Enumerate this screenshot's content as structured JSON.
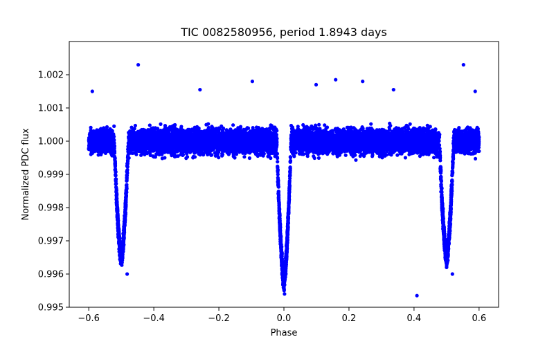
{
  "chart_data": {
    "type": "scatter",
    "title": "TIC 0082580956, period 1.8943 days",
    "xlabel": "Phase",
    "ylabel": "Normalized PDC flux",
    "xlim": [
      -0.66,
      0.66
    ],
    "ylim": [
      0.995,
      1.003
    ],
    "xticks": [
      -0.6,
      -0.4,
      -0.2,
      0.0,
      0.2,
      0.4,
      0.6
    ],
    "xtick_labels": [
      "−0.6",
      "−0.4",
      "−0.2",
      "0.0",
      "0.2",
      "0.4",
      "0.6"
    ],
    "yticks": [
      0.995,
      0.996,
      0.997,
      0.998,
      0.999,
      1.0,
      1.001,
      1.002
    ],
    "ytick_labels": [
      "0.995",
      "0.996",
      "0.997",
      "0.998",
      "0.999",
      "1.000",
      "1.001",
      "1.002"
    ],
    "grid": false,
    "marker_color": "#0000ff",
    "x_range": [
      -0.6,
      0.6
    ],
    "baseline_flux": 1.0,
    "noise_halfwidth": 0.0007,
    "transits": [
      {
        "phase": -0.5,
        "depth_flux": 0.9962
      },
      {
        "phase": 0.0,
        "depth_flux": 0.9955
      },
      {
        "phase": 0.5,
        "depth_flux": 0.9962
      }
    ],
    "outlier_points": [
      {
        "x": -0.448,
        "y": 1.0023
      },
      {
        "x": 0.552,
        "y": 1.0023
      },
      {
        "x": -0.097,
        "y": 1.0018
      },
      {
        "x": 0.159,
        "y": 1.00185
      },
      {
        "x": 0.242,
        "y": 1.0018
      },
      {
        "x": -0.258,
        "y": 1.00155
      },
      {
        "x": 0.337,
        "y": 1.00155
      },
      {
        "x": 0.099,
        "y": 1.0017
      },
      {
        "x": -0.589,
        "y": 1.0015
      },
      {
        "x": 0.588,
        "y": 1.0015
      },
      {
        "x": 0.409,
        "y": 0.99535
      },
      {
        "x": 0.002,
        "y": 0.9954
      },
      {
        "x": -0.482,
        "y": 0.996
      },
      {
        "x": 0.518,
        "y": 0.996
      }
    ]
  }
}
